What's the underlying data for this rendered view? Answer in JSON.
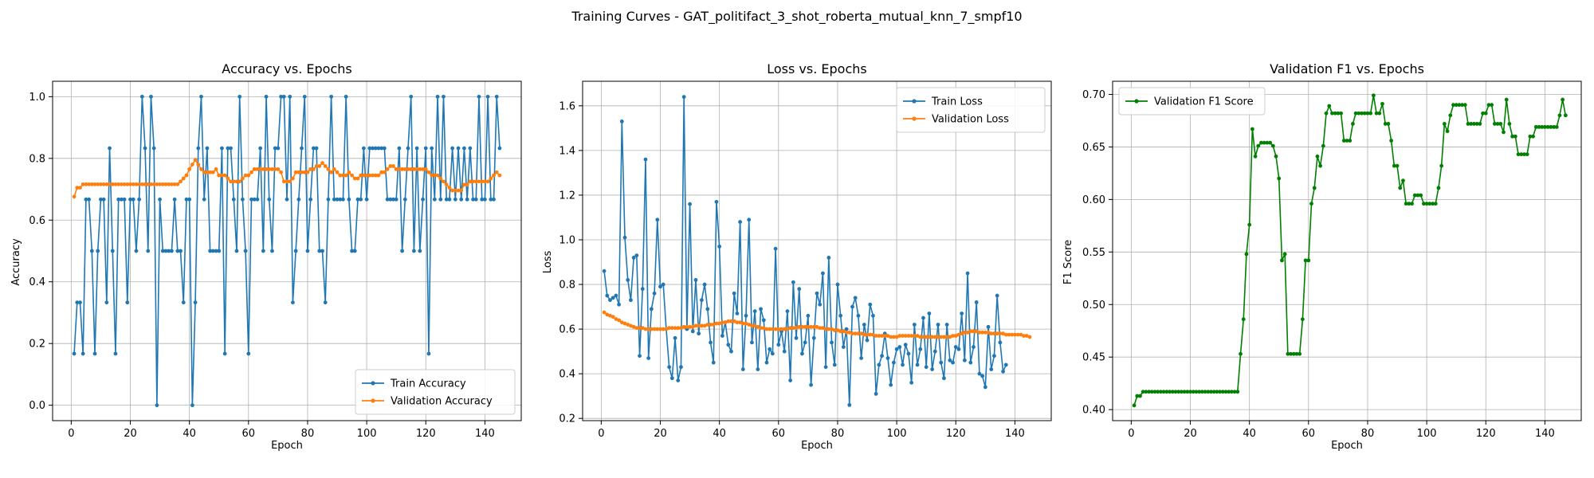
{
  "figure": {
    "suptitle": "Training Curves - GAT_politifact_3_shot_roberta_mutual_knn_7_smpf10"
  },
  "colors": {
    "train": "#1f77b4",
    "validation": "#ff7f0e",
    "f1": "#008000",
    "grid": "#b0b0b0"
  },
  "chart_data": [
    {
      "type": "line",
      "title": "Accuracy vs. Epochs",
      "xlabel": "Epoch",
      "ylabel": "Accuracy",
      "xlim": [
        -6.3,
        152.3
      ],
      "ylim": [
        -0.05,
        1.05
      ],
      "xticks": [
        0,
        20,
        40,
        60,
        80,
        100,
        120,
        140
      ],
      "yticks": [
        0.0,
        0.2,
        0.4,
        0.6,
        0.8,
        1.0
      ],
      "ytick_decimals": 1,
      "grid": true,
      "legend": "lower-right",
      "series": [
        {
          "name": "Train Accuracy",
          "color_key": "train",
          "y": [
            0.167,
            0.333,
            0.333,
            0.167,
            0.667,
            0.667,
            0.5,
            0.167,
            0.5,
            0.667,
            0.667,
            0.333,
            0.833,
            0.5,
            0.167,
            0.667,
            0.667,
            0.667,
            0.333,
            0.667,
            0.667,
            0.5,
            0.667,
            1.0,
            0.833,
            0.5,
            1.0,
            0.833,
            0.0,
            0.667,
            0.5,
            0.5,
            0.5,
            0.5,
            0.667,
            0.5,
            0.5,
            0.333,
            0.667,
            0.667,
            0.0,
            0.333,
            0.833,
            1.0,
            0.667,
            0.833,
            0.5,
            0.5,
            0.5,
            0.5,
            0.833,
            0.167,
            0.833,
            0.833,
            0.667,
            0.5,
            1.0,
            0.667,
            0.5,
            0.167,
            0.667,
            0.667,
            0.667,
            0.833,
            0.5,
            1.0,
            0.667,
            0.5,
            0.833,
            0.833,
            1.0,
            1.0,
            0.667,
            1.0,
            0.333,
            0.5,
            0.667,
            0.833,
            1.0,
            0.5,
            0.667,
            0.833,
            0.833,
            0.5,
            0.5,
            0.333,
            0.667,
            1.0,
            0.667,
            0.667,
            0.667,
            0.667,
            1.0,
            0.667,
            0.5,
            0.5,
            0.667,
            0.667,
            0.833,
            0.667,
            0.833,
            0.833,
            0.833,
            0.833,
            0.833,
            0.833,
            0.667,
            0.667,
            0.667,
            0.667,
            0.833,
            0.5,
            0.667,
            0.833,
            1.0,
            0.5,
            0.833,
            0.5,
            0.667,
            0.833,
            0.167,
            0.833,
            0.667,
            1.0,
            0.667,
            1.0,
            0.667,
            0.667,
            0.833,
            0.667,
            0.833,
            0.667,
            0.833,
            0.667,
            0.833,
            0.667,
            0.667,
            1.0,
            0.667,
            0.667,
            1.0,
            0.667,
            0.667,
            1.0,
            0.833
          ]
        },
        {
          "name": "Validation Accuracy",
          "color_key": "validation",
          "y": [
            0.676,
            0.705,
            0.705,
            0.716,
            0.716,
            0.716,
            0.716,
            0.716,
            0.716,
            0.716,
            0.716,
            0.716,
            0.716,
            0.716,
            0.716,
            0.716,
            0.716,
            0.716,
            0.716,
            0.716,
            0.716,
            0.716,
            0.716,
            0.716,
            0.716,
            0.716,
            0.716,
            0.716,
            0.716,
            0.716,
            0.716,
            0.716,
            0.716,
            0.716,
            0.716,
            0.716,
            0.725,
            0.735,
            0.745,
            0.765,
            0.78,
            0.795,
            0.78,
            0.765,
            0.755,
            0.755,
            0.755,
            0.755,
            0.765,
            0.745,
            0.745,
            0.745,
            0.735,
            0.725,
            0.725,
            0.725,
            0.725,
            0.735,
            0.745,
            0.745,
            0.755,
            0.765,
            0.765,
            0.765,
            0.765,
            0.765,
            0.765,
            0.765,
            0.765,
            0.765,
            0.755,
            0.725,
            0.725,
            0.725,
            0.735,
            0.755,
            0.755,
            0.755,
            0.755,
            0.755,
            0.765,
            0.765,
            0.775,
            0.775,
            0.785,
            0.775,
            0.765,
            0.755,
            0.765,
            0.755,
            0.745,
            0.745,
            0.745,
            0.755,
            0.745,
            0.735,
            0.735,
            0.745,
            0.745,
            0.745,
            0.745,
            0.745,
            0.745,
            0.745,
            0.755,
            0.755,
            0.765,
            0.775,
            0.775,
            0.765,
            0.765,
            0.765,
            0.765,
            0.765,
            0.765,
            0.765,
            0.765,
            0.765,
            0.765,
            0.765,
            0.755,
            0.745,
            0.745,
            0.745,
            0.735,
            0.725,
            0.715,
            0.705,
            0.696,
            0.696,
            0.696,
            0.696,
            0.715,
            0.715,
            0.725,
            0.725,
            0.725,
            0.725,
            0.725,
            0.725,
            0.725,
            0.735,
            0.745,
            0.755,
            0.745
          ]
        }
      ]
    },
    {
      "type": "line",
      "title": "Loss vs. Epochs",
      "xlabel": "Epoch",
      "ylabel": "Loss",
      "xlim": [
        -6.3,
        152.3
      ],
      "ylim": [
        0.19,
        1.71
      ],
      "xticks": [
        0,
        20,
        40,
        60,
        80,
        100,
        120,
        140
      ],
      "yticks": [
        0.2,
        0.4,
        0.6,
        0.8,
        1.0,
        1.2,
        1.4,
        1.6
      ],
      "ytick_decimals": 1,
      "grid": true,
      "legend": "upper-right",
      "series": [
        {
          "name": "Train Loss",
          "color_key": "train",
          "y": [
            0.86,
            0.75,
            0.73,
            0.74,
            0.75,
            0.71,
            1.53,
            1.01,
            0.82,
            0.73,
            0.92,
            0.93,
            0.48,
            0.78,
            1.36,
            0.47,
            0.69,
            0.76,
            1.09,
            0.79,
            0.8,
            0.6,
            0.43,
            0.38,
            0.56,
            0.37,
            0.43,
            1.64,
            0.6,
            1.16,
            0.59,
            0.82,
            0.58,
            0.73,
            0.8,
            0.69,
            0.54,
            0.45,
            1.17,
            0.97,
            0.57,
            0.63,
            0.53,
            0.5,
            0.76,
            0.67,
            1.08,
            0.42,
            0.66,
            1.09,
            0.54,
            0.68,
            0.42,
            0.69,
            0.64,
            0.45,
            0.51,
            0.49,
            0.96,
            0.53,
            0.59,
            0.5,
            0.68,
            0.37,
            0.81,
            0.56,
            0.78,
            0.49,
            0.54,
            0.66,
            0.35,
            0.56,
            0.76,
            0.71,
            0.85,
            0.43,
            0.92,
            0.54,
            0.44,
            0.8,
            0.66,
            0.52,
            0.6,
            0.26,
            0.7,
            0.74,
            0.66,
            0.47,
            0.62,
            0.55,
            0.71,
            0.66,
            0.31,
            0.44,
            0.48,
            0.58,
            0.47,
            0.35,
            0.45,
            0.51,
            0.52,
            0.44,
            0.53,
            0.49,
            0.36,
            0.62,
            0.44,
            0.51,
            0.65,
            0.43,
            0.67,
            0.42,
            0.5,
            0.62,
            0.45,
            0.38,
            0.62,
            0.46,
            0.45,
            0.52,
            0.51,
            0.67,
            0.46,
            0.85,
            0.45,
            0.52,
            0.72,
            0.4,
            0.39,
            0.34,
            0.61,
            0.42,
            0.48,
            0.75,
            0.54,
            0.41,
            0.44
          ]
        },
        {
          "name": "Validation Loss",
          "color_key": "validation",
          "y": [
            0.675,
            0.665,
            0.66,
            0.655,
            0.645,
            0.64,
            0.63,
            0.625,
            0.62,
            0.615,
            0.61,
            0.605,
            0.605,
            0.605,
            0.6,
            0.6,
            0.6,
            0.6,
            0.6,
            0.6,
            0.6,
            0.6,
            0.605,
            0.605,
            0.605,
            0.605,
            0.605,
            0.61,
            0.61,
            0.61,
            0.61,
            0.615,
            0.615,
            0.615,
            0.615,
            0.62,
            0.62,
            0.62,
            0.625,
            0.625,
            0.63,
            0.63,
            0.635,
            0.635,
            0.635,
            0.63,
            0.63,
            0.625,
            0.625,
            0.62,
            0.615,
            0.615,
            0.61,
            0.605,
            0.605,
            0.6,
            0.6,
            0.6,
            0.6,
            0.6,
            0.6,
            0.6,
            0.6,
            0.605,
            0.605,
            0.605,
            0.61,
            0.61,
            0.61,
            0.61,
            0.61,
            0.61,
            0.61,
            0.605,
            0.605,
            0.6,
            0.6,
            0.6,
            0.595,
            0.595,
            0.59,
            0.59,
            0.585,
            0.585,
            0.58,
            0.58,
            0.58,
            0.58,
            0.575,
            0.575,
            0.575,
            0.575,
            0.57,
            0.57,
            0.57,
            0.57,
            0.57,
            0.565,
            0.565,
            0.565,
            0.57,
            0.57,
            0.57,
            0.57,
            0.57,
            0.57,
            0.57,
            0.565,
            0.565,
            0.565,
            0.565,
            0.565,
            0.565,
            0.565,
            0.565,
            0.565,
            0.565,
            0.565,
            0.57,
            0.57,
            0.575,
            0.58,
            0.585,
            0.585,
            0.59,
            0.59,
            0.59,
            0.585,
            0.585,
            0.585,
            0.585,
            0.58,
            0.58,
            0.58,
            0.58,
            0.58,
            0.575,
            0.575,
            0.575,
            0.575,
            0.575,
            0.575,
            0.57,
            0.57,
            0.565
          ]
        }
      ]
    },
    {
      "type": "line",
      "title": "Validation F1 vs. Epochs",
      "xlabel": "Epoch",
      "ylabel": "F1 Score",
      "xlim": [
        -6.3,
        152.3
      ],
      "ylim": [
        0.3895,
        0.7125
      ],
      "xticks": [
        0,
        20,
        40,
        60,
        80,
        100,
        120,
        140
      ],
      "yticks": [
        0.4,
        0.45,
        0.5,
        0.55,
        0.6,
        0.65,
        0.7
      ],
      "ytick_decimals": 2,
      "grid": true,
      "legend": "upper-left",
      "series": [
        {
          "name": "Validation F1 Score",
          "color_key": "f1",
          "y": [
            0.404,
            0.413,
            0.413,
            0.417,
            0.417,
            0.417,
            0.417,
            0.417,
            0.417,
            0.417,
            0.417,
            0.417,
            0.417,
            0.417,
            0.417,
            0.417,
            0.417,
            0.417,
            0.417,
            0.417,
            0.417,
            0.417,
            0.417,
            0.417,
            0.417,
            0.417,
            0.417,
            0.417,
            0.417,
            0.417,
            0.417,
            0.417,
            0.417,
            0.417,
            0.417,
            0.417,
            0.453,
            0.486,
            0.548,
            0.576,
            0.667,
            0.641,
            0.651,
            0.654,
            0.654,
            0.654,
            0.654,
            0.651,
            0.641,
            0.62,
            0.542,
            0.548,
            0.453,
            0.453,
            0.453,
            0.453,
            0.453,
            0.486,
            0.542,
            0.542,
            0.596,
            0.611,
            0.641,
            0.632,
            0.651,
            0.682,
            0.689,
            0.682,
            0.682,
            0.682,
            0.682,
            0.656,
            0.656,
            0.656,
            0.672,
            0.682,
            0.682,
            0.682,
            0.682,
            0.682,
            0.682,
            0.699,
            0.682,
            0.682,
            0.691,
            0.672,
            0.672,
            0.656,
            0.632,
            0.632,
            0.611,
            0.618,
            0.596,
            0.596,
            0.596,
            0.604,
            0.604,
            0.604,
            0.596,
            0.596,
            0.596,
            0.596,
            0.596,
            0.611,
            0.632,
            0.672,
            0.665,
            0.68,
            0.69,
            0.69,
            0.69,
            0.69,
            0.69,
            0.672,
            0.672,
            0.672,
            0.672,
            0.672,
            0.682,
            0.682,
            0.69,
            0.69,
            0.672,
            0.672,
            0.672,
            0.664,
            0.695,
            0.672,
            0.66,
            0.66,
            0.643,
            0.643,
            0.643,
            0.643,
            0.66,
            0.66,
            0.669,
            0.669,
            0.669,
            0.669,
            0.669,
            0.669,
            0.669,
            0.669,
            0.68,
            0.695,
            0.68
          ]
        }
      ]
    }
  ]
}
